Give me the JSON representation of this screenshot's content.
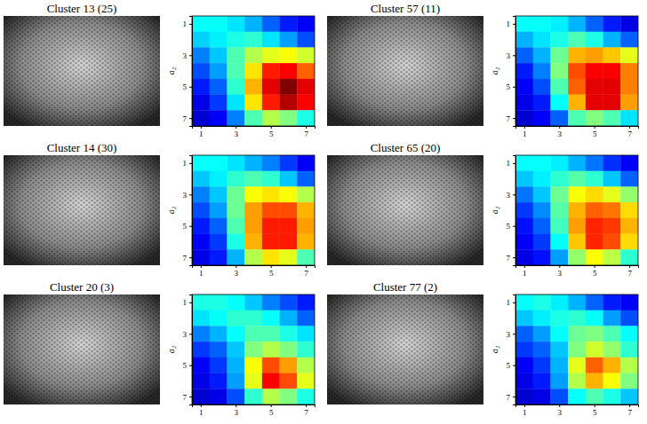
{
  "chart_data": [
    {
      "type": "heatmap",
      "title": "Cluster 13 (25)",
      "y_label": "a₂",
      "x": [
        1,
        2,
        3,
        4,
        5,
        6,
        7
      ],
      "y": [
        1,
        2,
        3,
        4,
        5,
        6,
        7
      ],
      "xlim": [
        0.5,
        7.5
      ],
      "ylim": [
        0.5,
        7.5
      ],
      "xticks": [
        1,
        3,
        5,
        7
      ],
      "yticks": [
        1,
        3,
        5,
        7
      ],
      "zlim": [
        0,
        1
      ],
      "cells": [
        [
          0.38,
          0.38,
          0.35,
          0.3,
          0.22,
          0.15,
          0.12
        ],
        [
          0.33,
          0.36,
          0.4,
          0.42,
          0.35,
          0.28,
          0.2
        ],
        [
          0.25,
          0.32,
          0.45,
          0.55,
          0.6,
          0.62,
          0.58
        ],
        [
          0.2,
          0.28,
          0.45,
          0.65,
          0.85,
          0.88,
          0.78
        ],
        [
          0.15,
          0.22,
          0.42,
          0.7,
          0.9,
          1.0,
          0.9
        ],
        [
          0.1,
          0.18,
          0.35,
          0.65,
          0.85,
          0.95,
          0.88
        ],
        [
          0.08,
          0.12,
          0.25,
          0.45,
          0.55,
          0.5,
          0.4
        ]
      ]
    },
    {
      "type": "heatmap",
      "title": "Cluster 57 (11)",
      "y_label": "a₂",
      "x": [
        1,
        2,
        3,
        4,
        5,
        6,
        7
      ],
      "y": [
        1,
        2,
        3,
        4,
        5,
        6,
        7
      ],
      "xlim": [
        0.5,
        7.5
      ],
      "ylim": [
        0.5,
        7.5
      ],
      "xticks": [
        1,
        3,
        5,
        7
      ],
      "yticks": [
        1,
        3,
        5,
        7
      ],
      "zlim": [
        0,
        1
      ],
      "cells": [
        [
          0.38,
          0.38,
          0.36,
          0.3,
          0.22,
          0.15,
          0.1
        ],
        [
          0.3,
          0.35,
          0.4,
          0.45,
          0.4,
          0.3,
          0.22
        ],
        [
          0.22,
          0.3,
          0.48,
          0.7,
          0.72,
          0.68,
          0.6
        ],
        [
          0.15,
          0.25,
          0.5,
          0.8,
          0.88,
          0.88,
          0.75
        ],
        [
          0.12,
          0.2,
          0.45,
          0.78,
          0.9,
          0.9,
          0.75
        ],
        [
          0.1,
          0.15,
          0.38,
          0.7,
          0.9,
          0.9,
          0.72
        ],
        [
          0.08,
          0.12,
          0.22,
          0.45,
          0.5,
          0.45,
          0.35
        ]
      ]
    },
    {
      "type": "heatmap",
      "title": "Cluster 14 (30)",
      "y_label": "a₂",
      "x": [
        1,
        2,
        3,
        4,
        5,
        6,
        7
      ],
      "y": [
        1,
        2,
        3,
        4,
        5,
        6,
        7
      ],
      "xlim": [
        0.5,
        7.5
      ],
      "ylim": [
        0.5,
        7.5
      ],
      "xticks": [
        1,
        3,
        5,
        7
      ],
      "yticks": [
        1,
        3,
        5,
        7
      ],
      "zlim": [
        0,
        1
      ],
      "cells": [
        [
          0.38,
          0.38,
          0.35,
          0.3,
          0.25,
          0.18,
          0.12
        ],
        [
          0.32,
          0.36,
          0.42,
          0.45,
          0.42,
          0.32,
          0.22
        ],
        [
          0.25,
          0.32,
          0.48,
          0.62,
          0.65,
          0.62,
          0.55
        ],
        [
          0.2,
          0.28,
          0.48,
          0.72,
          0.8,
          0.8,
          0.7
        ],
        [
          0.15,
          0.22,
          0.45,
          0.72,
          0.85,
          0.85,
          0.72
        ],
        [
          0.12,
          0.18,
          0.4,
          0.7,
          0.85,
          0.85,
          0.7
        ],
        [
          0.1,
          0.15,
          0.3,
          0.55,
          0.65,
          0.6,
          0.45
        ]
      ]
    },
    {
      "type": "heatmap",
      "title": "Cluster 65 (20)",
      "y_label": "a₂",
      "x": [
        1,
        2,
        3,
        4,
        5,
        6,
        7
      ],
      "y": [
        1,
        2,
        3,
        4,
        5,
        6,
        7
      ],
      "xlim": [
        0.5,
        7.5
      ],
      "ylim": [
        0.5,
        7.5
      ],
      "xticks": [
        1,
        3,
        5,
        7
      ],
      "yticks": [
        1,
        3,
        5,
        7
      ],
      "zlim": [
        0,
        1
      ],
      "cells": [
        [
          0.38,
          0.38,
          0.36,
          0.3,
          0.24,
          0.17,
          0.12
        ],
        [
          0.32,
          0.36,
          0.42,
          0.46,
          0.42,
          0.32,
          0.22
        ],
        [
          0.24,
          0.32,
          0.48,
          0.62,
          0.66,
          0.6,
          0.52
        ],
        [
          0.18,
          0.26,
          0.46,
          0.7,
          0.78,
          0.76,
          0.66
        ],
        [
          0.14,
          0.22,
          0.44,
          0.72,
          0.84,
          0.82,
          0.7
        ],
        [
          0.12,
          0.18,
          0.38,
          0.68,
          0.84,
          0.8,
          0.66
        ],
        [
          0.1,
          0.14,
          0.28,
          0.52,
          0.62,
          0.56,
          0.42
        ]
      ]
    },
    {
      "type": "heatmap",
      "title": "Cluster 20 (3)",
      "y_label": "a₂",
      "x": [
        1,
        2,
        3,
        4,
        5,
        6,
        7
      ],
      "y": [
        1,
        2,
        3,
        4,
        5,
        6,
        7
      ],
      "xlim": [
        0.5,
        7.5
      ],
      "ylim": [
        0.5,
        7.5
      ],
      "xticks": [
        1,
        3,
        5,
        7
      ],
      "yticks": [
        1,
        3,
        5,
        7
      ],
      "zlim": [
        0,
        1
      ],
      "cells": [
        [
          0.4,
          0.4,
          0.38,
          0.32,
          0.25,
          0.2,
          0.15
        ],
        [
          0.35,
          0.38,
          0.42,
          0.42,
          0.38,
          0.3,
          0.22
        ],
        [
          0.25,
          0.3,
          0.38,
          0.45,
          0.45,
          0.4,
          0.35
        ],
        [
          0.18,
          0.22,
          0.32,
          0.5,
          0.55,
          0.5,
          0.42
        ],
        [
          0.12,
          0.18,
          0.3,
          0.62,
          0.8,
          0.72,
          0.55
        ],
        [
          0.1,
          0.15,
          0.28,
          0.6,
          0.88,
          0.8,
          0.6
        ],
        [
          0.08,
          0.1,
          0.2,
          0.42,
          0.55,
          0.5,
          0.4
        ]
      ]
    },
    {
      "type": "heatmap",
      "title": "Cluster 77 (2)",
      "y_label": "a₂",
      "x": [
        1,
        2,
        3,
        4,
        5,
        6,
        7
      ],
      "y": [
        1,
        2,
        3,
        4,
        5,
        6,
        7
      ],
      "xlim": [
        0.5,
        7.5
      ],
      "ylim": [
        0.5,
        7.5
      ],
      "xticks": [
        1,
        3,
        5,
        7
      ],
      "yticks": [
        1,
        3,
        5,
        7
      ],
      "zlim": [
        0,
        1
      ],
      "cells": [
        [
          0.38,
          0.4,
          0.36,
          0.3,
          0.22,
          0.15,
          0.12
        ],
        [
          0.32,
          0.36,
          0.4,
          0.42,
          0.38,
          0.28,
          0.2
        ],
        [
          0.22,
          0.28,
          0.38,
          0.48,
          0.5,
          0.45,
          0.38
        ],
        [
          0.18,
          0.22,
          0.32,
          0.5,
          0.58,
          0.52,
          0.42
        ],
        [
          0.12,
          0.18,
          0.3,
          0.6,
          0.78,
          0.7,
          0.55
        ],
        [
          0.1,
          0.15,
          0.28,
          0.55,
          0.7,
          0.62,
          0.5
        ],
        [
          0.08,
          0.1,
          0.2,
          0.38,
          0.45,
          0.4,
          0.32
        ]
      ]
    }
  ]
}
